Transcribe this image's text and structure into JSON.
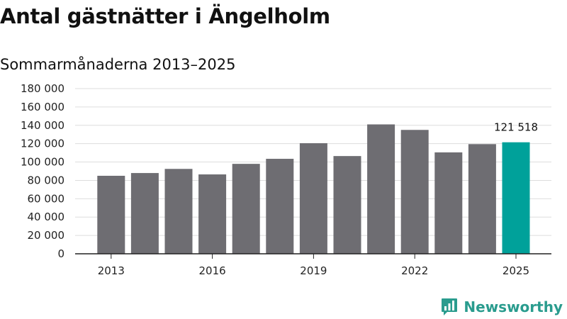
{
  "header": {
    "title": "Antal gästnätter i Ängelholm",
    "subtitle": "Sommarmånaderna 2013–2025"
  },
  "brand": {
    "name": "Newsworthy",
    "icon": "bar-chart-logo-icon",
    "color": "#2a9c8e"
  },
  "colors": {
    "bar": "#6e6d72",
    "highlight": "#00a19a",
    "grid": "#dddddd",
    "axis": "#222222"
  },
  "chart_data": {
    "type": "bar",
    "title": "Antal gästnätter i Ängelholm",
    "subtitle": "Sommarmånaderna 2013–2025",
    "x": [
      2013,
      2014,
      2015,
      2016,
      2017,
      2018,
      2019,
      2020,
      2021,
      2022,
      2023,
      2024,
      2025
    ],
    "values": [
      85000,
      88000,
      92500,
      86500,
      98000,
      103500,
      120500,
      106500,
      141000,
      135000,
      110500,
      119500,
      121518
    ],
    "highlight_index": 12,
    "data_labels": [
      {
        "index": 12,
        "text": "121 518"
      }
    ],
    "x_tick_labels": [
      "2013",
      "",
      "",
      "2016",
      "",
      "",
      "2019",
      "",
      "",
      "2022",
      "",
      "",
      "2025"
    ],
    "y_ticks": [
      0,
      20000,
      40000,
      60000,
      80000,
      100000,
      120000,
      140000,
      160000,
      180000
    ],
    "y_tick_labels": [
      "0",
      "20 000",
      "40 000",
      "60 000",
      "80 000",
      "100 000",
      "120 000",
      "140 000",
      "160 000",
      "180 000"
    ],
    "ylim": [
      0,
      180000
    ],
    "grid": true,
    "legend": "none",
    "xlabel": "",
    "ylabel": ""
  }
}
